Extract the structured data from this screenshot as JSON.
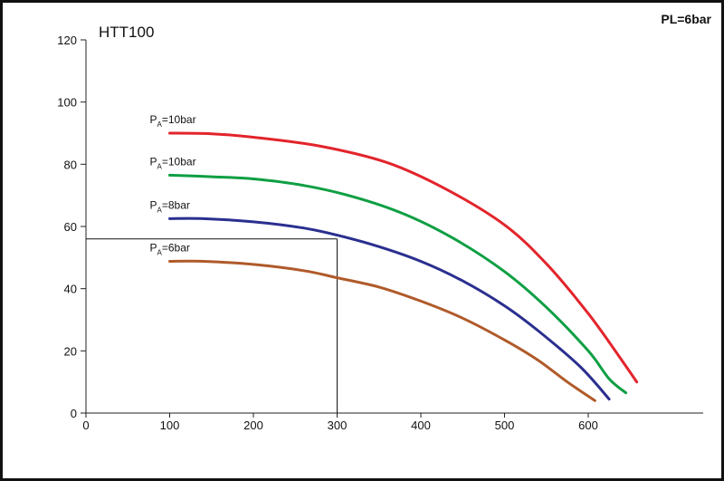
{
  "chart_data": {
    "type": "line",
    "title": "HTT100",
    "annotation": "PL=6bar",
    "xlabel": "",
    "ylabel": "",
    "xlim": [
      0,
      720
    ],
    "ylim": [
      0,
      120
    ],
    "x_ticks": [
      "0",
      "100",
      "200",
      "300",
      "400",
      "500",
      "600"
    ],
    "y_ticks": [
      "0",
      "20",
      "40",
      "60",
      "80",
      "100",
      "120"
    ],
    "grid": false,
    "reference_point": {
      "x": 300,
      "y": 56
    },
    "series": [
      {
        "name": "PA=10bar",
        "label_main": "P",
        "label_sub": "A",
        "label_rest": "=10bar",
        "color": "#e3242b",
        "points": [
          [
            100,
            90
          ],
          [
            150,
            89.8
          ],
          [
            200,
            88.7
          ],
          [
            280,
            85.8
          ],
          [
            360,
            80.5
          ],
          [
            430,
            72
          ],
          [
            500,
            60.5
          ],
          [
            550,
            48
          ],
          [
            600,
            32
          ],
          [
            640,
            17
          ],
          [
            658,
            10
          ]
        ]
      },
      {
        "name": "PA=10bar",
        "label_main": "P",
        "label_sub": "A",
        "label_rest": "=10bar",
        "color": "#0e9f43",
        "points": [
          [
            100,
            76.5
          ],
          [
            150,
            76
          ],
          [
            200,
            75.3
          ],
          [
            260,
            73.2
          ],
          [
            320,
            69.5
          ],
          [
            380,
            64
          ],
          [
            440,
            56
          ],
          [
            500,
            45.5
          ],
          [
            550,
            34
          ],
          [
            600,
            20
          ],
          [
            625,
            11
          ],
          [
            645,
            6.5
          ]
        ]
      },
      {
        "name": "PA=8bar",
        "label_main": "P",
        "label_sub": "A",
        "label_rest": "=8bar",
        "color": "#2a2f8f",
        "points": [
          [
            100,
            62.5
          ],
          [
            140,
            62.5
          ],
          [
            200,
            61.5
          ],
          [
            260,
            59.5
          ],
          [
            300,
            57.2
          ],
          [
            350,
            53.5
          ],
          [
            400,
            48.8
          ],
          [
            450,
            42.5
          ],
          [
            500,
            34.5
          ],
          [
            540,
            26.5
          ],
          [
            590,
            15
          ],
          [
            625,
            4.5
          ]
        ]
      },
      {
        "name": "PA=6bar",
        "label_main": "P",
        "label_sub": "A",
        "label_rest": "=6bar",
        "color": "#b05a2a",
        "points": [
          [
            100,
            48.8
          ],
          [
            140,
            48.8
          ],
          [
            200,
            47.8
          ],
          [
            260,
            45.8
          ],
          [
            300,
            43.5
          ],
          [
            350,
            40.5
          ],
          [
            400,
            36
          ],
          [
            450,
            30.5
          ],
          [
            500,
            23.5
          ],
          [
            540,
            17
          ],
          [
            575,
            10
          ],
          [
            608,
            4
          ]
        ]
      }
    ]
  }
}
